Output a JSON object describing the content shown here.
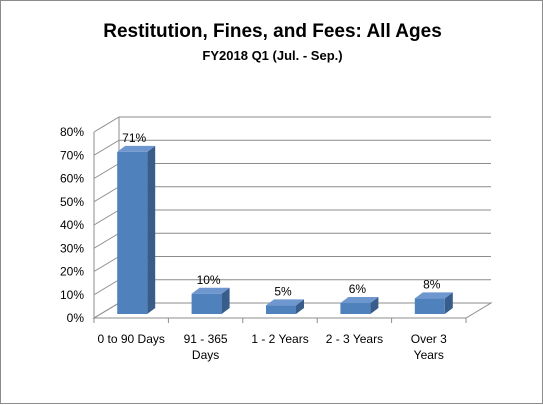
{
  "chart_data": {
    "type": "bar",
    "title": "Restitution,  Fines, and Fees: All Ages",
    "subtitle": "FY2018 Q1 (Jul. - Sep.)",
    "categories": [
      [
        "0 to 90 Days"
      ],
      [
        "91 - 365",
        "Days"
      ],
      [
        "1 - 2 Years"
      ],
      [
        "2 - 3 Years"
      ],
      [
        "Over 3",
        "Years"
      ]
    ],
    "values": [
      71,
      10,
      5,
      6,
      8
    ],
    "data_labels": [
      "71%",
      "10%",
      "5%",
      "6%",
      "8%"
    ],
    "y_ticks": [
      "0%",
      "10%",
      "20%",
      "30%",
      "40%",
      "50%",
      "60%",
      "70%",
      "80%"
    ],
    "ylim": [
      0,
      80
    ],
    "grid": true,
    "legend": "none",
    "style": "3d-column",
    "bar_color": "#4f81bd"
  }
}
